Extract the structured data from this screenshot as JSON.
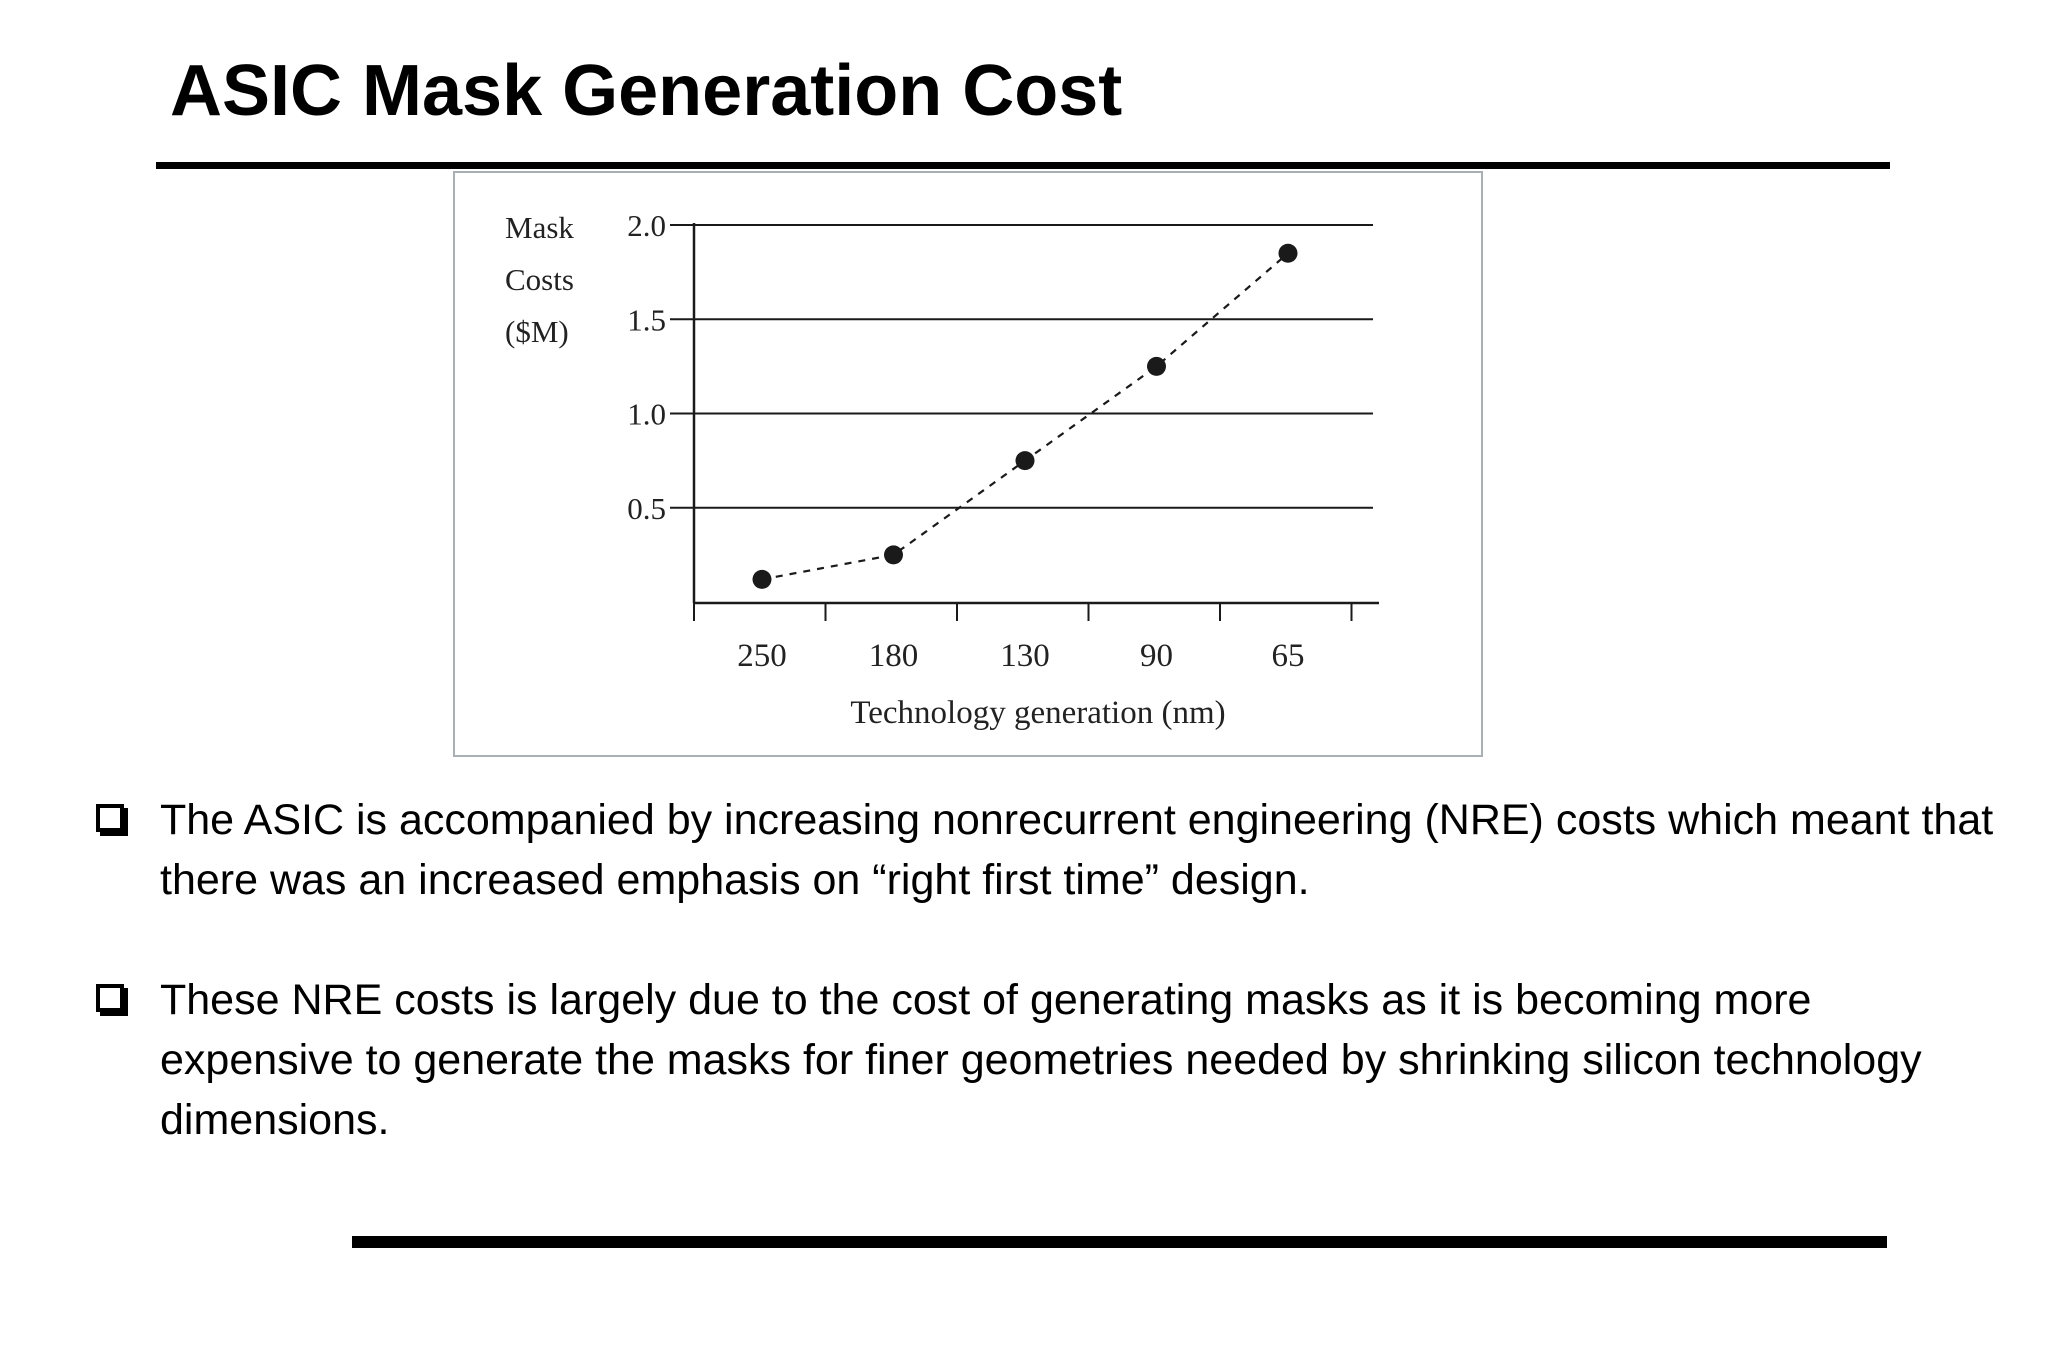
{
  "slide": {
    "title": "ASIC Mask Generation Cost",
    "bullets": [
      "The ASIC is accompanied by increasing nonrecurrent engineering (NRE) costs which meant that there was an increased emphasis on “right first time” design.",
      "These NRE costs is largely due to the cost of generating masks as it is becoming more expensive to generate the masks for finer geometries needed by shrinking silicon technology dimensions."
    ]
  },
  "chart_data": {
    "type": "line",
    "title": "",
    "ylabel_lines": [
      "Mask",
      "Costs",
      "($M)"
    ],
    "xlabel": "Technology generation (nm)",
    "categories": [
      "250",
      "180",
      "130",
      "90",
      "65"
    ],
    "values": [
      0.12,
      0.25,
      0.75,
      1.25,
      1.85
    ],
    "ylim": [
      0,
      2.0
    ],
    "yticks": [
      "2.0",
      "1.5",
      "1.0",
      "0.5"
    ],
    "ytick_values": [
      2.0,
      1.5,
      1.0,
      0.5
    ],
    "grid": true,
    "line_style": "dashed",
    "marker": "filled-circle",
    "color": "#1a1a1a"
  }
}
